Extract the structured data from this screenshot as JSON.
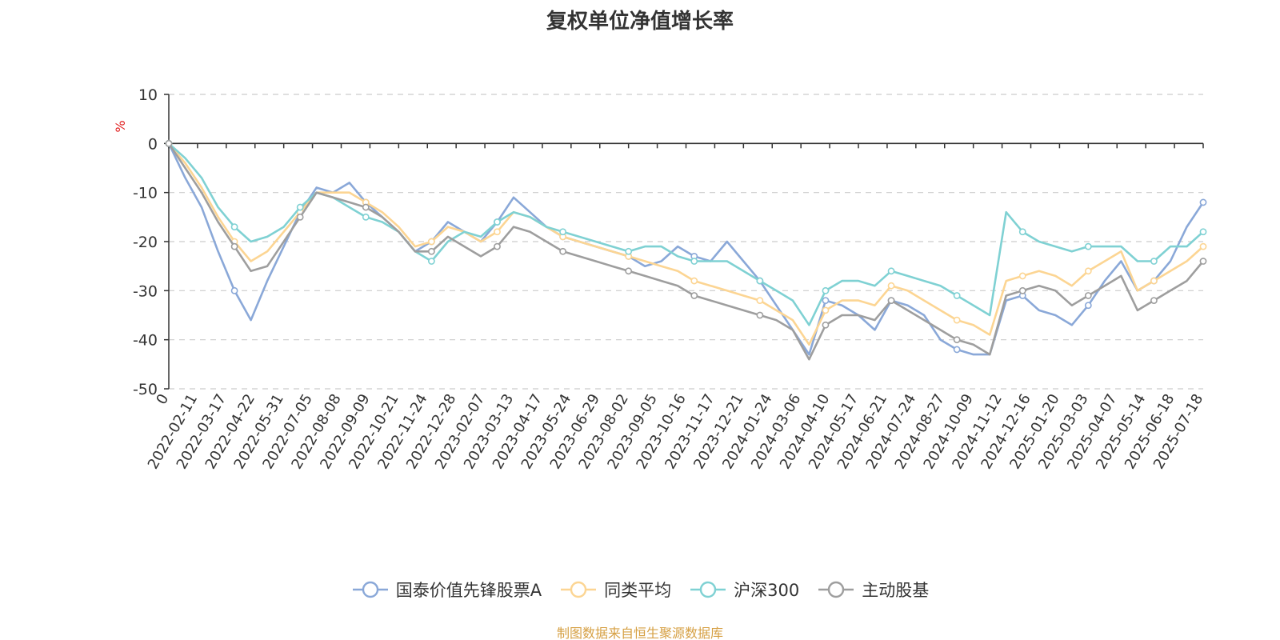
{
  "chart_data": {
    "type": "line",
    "title": "复权单位净值增长率",
    "ylabel": "%",
    "xlabel": "",
    "ylim": [
      -50,
      10
    ],
    "y_ticks": [
      10,
      0,
      -10,
      -20,
      -30,
      -40,
      -50
    ],
    "x_tick_labels": [
      "0",
      "2022-02-11",
      "2022-03-17",
      "2022-04-22",
      "2022-05-31",
      "2022-07-05",
      "2022-08-08",
      "2022-09-09",
      "2022-10-21",
      "2022-11-24",
      "2022-12-28",
      "2023-02-07",
      "2023-03-13",
      "2023-04-17",
      "2023-05-24",
      "2023-06-29",
      "2023-08-02",
      "2023-09-05",
      "2023-10-16",
      "2023-11-17",
      "2023-12-21",
      "2024-01-24",
      "2024-03-06",
      "2024-04-10",
      "2024-05-17",
      "2024-06-21",
      "2024-07-24",
      "2024-08-27",
      "2024-10-09",
      "2024-11-12",
      "2024-12-16",
      "2025-01-20",
      "2025-03-03",
      "2025-04-07",
      "2025-05-14",
      "2025-06-18",
      "2025-07-18"
    ],
    "grid": true,
    "legend_position": "bottom",
    "series": [
      {
        "name": "国泰价值先锋股票A",
        "color": "#8aa8d8",
        "values": [
          0,
          -7,
          -13,
          -22,
          -30,
          -36,
          -28,
          -21,
          -14,
          -9,
          -10,
          -8,
          -12,
          -15,
          -18,
          -22,
          -20,
          -16,
          -18,
          -20,
          -16,
          -11,
          -14,
          -17,
          -19,
          -20,
          -21,
          -22,
          -23,
          -25,
          -24,
          -21,
          -23,
          -24,
          -20,
          -24,
          -28,
          -33,
          -38,
          -43,
          -32,
          -33,
          -35,
          -38,
          -32,
          -33,
          -35,
          -40,
          -42,
          -43,
          -43,
          -32,
          -31,
          -34,
          -35,
          -37,
          -33,
          -28,
          -24,
          -30,
          -28,
          -24,
          -17,
          -12
        ]
      },
      {
        "name": "同类平均",
        "color": "#fcd593",
        "values": [
          0,
          -4,
          -9,
          -15,
          -20,
          -24,
          -22,
          -18,
          -14,
          -10,
          -10,
          -10,
          -12,
          -14,
          -17,
          -21,
          -20,
          -17,
          -18,
          -20,
          -18,
          -14,
          -15,
          -17,
          -19,
          -20,
          -21,
          -22,
          -23,
          -24,
          -25,
          -26,
          -28,
          -29,
          -30,
          -31,
          -32,
          -34,
          -36,
          -41,
          -34,
          -32,
          -32,
          -33,
          -29,
          -30,
          -32,
          -34,
          -36,
          -37,
          -39,
          -28,
          -27,
          -26,
          -27,
          -29,
          -26,
          -24,
          -22,
          -30,
          -28,
          -26,
          -24,
          -21
        ]
      },
      {
        "name": "沪深300",
        "color": "#7fd1d3",
        "values": [
          0,
          -3,
          -7,
          -13,
          -17,
          -20,
          -19,
          -17,
          -13,
          -10,
          -11,
          -13,
          -15,
          -16,
          -18,
          -22,
          -24,
          -20,
          -18,
          -19,
          -16,
          -14,
          -15,
          -17,
          -18,
          -19,
          -20,
          -21,
          -22,
          -21,
          -21,
          -23,
          -24,
          -24,
          -24,
          -26,
          -28,
          -30,
          -32,
          -37,
          -30,
          -28,
          -28,
          -29,
          -26,
          -27,
          -28,
          -29,
          -31,
          -33,
          -35,
          -14,
          -18,
          -20,
          -21,
          -22,
          -21,
          -21,
          -21,
          -24,
          -24,
          -21,
          -21,
          -18
        ]
      },
      {
        "name": "主动股基",
        "color": "#9e9e9e",
        "values": [
          0,
          -5,
          -10,
          -16,
          -21,
          -26,
          -25,
          -20,
          -15,
          -10,
          -11,
          -12,
          -13,
          -15,
          -18,
          -22,
          -22,
          -19,
          -21,
          -23,
          -21,
          -17,
          -18,
          -20,
          -22,
          -23,
          -24,
          -25,
          -26,
          -27,
          -28,
          -29,
          -31,
          -32,
          -33,
          -34,
          -35,
          -36,
          -38,
          -44,
          -37,
          -35,
          -35,
          -36,
          -32,
          -34,
          -36,
          -38,
          -40,
          -41,
          -43,
          -31,
          -30,
          -29,
          -30,
          -33,
          -31,
          -29,
          -27,
          -34,
          -32,
          -30,
          -28,
          -24
        ]
      }
    ]
  },
  "source_note": "制图数据来自恒生聚源数据库",
  "source_note_color": "#d6a044"
}
